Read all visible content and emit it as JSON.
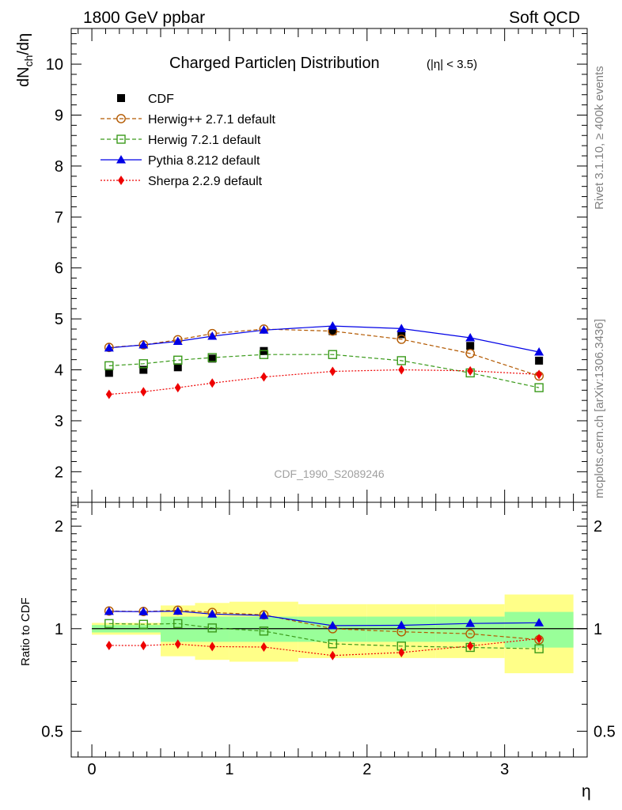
{
  "header": {
    "left": "1800 GeV ppbar",
    "right": "Soft QCD"
  },
  "side_labels": {
    "rivet": "Rivet 3.1.10, ≥ 400k events",
    "mcplots": "mcplots.cern.ch [arXiv:1306.3436]"
  },
  "title": {
    "main": "Charged Particleη Distribution",
    "cut": "(|η| < 3.5)"
  },
  "watermark": "CDF_1990_S2089246",
  "colors": {
    "cdf": "#000000",
    "herwigpp": "#b35900",
    "herwig7": "#3a9a1a",
    "pythia": "#0000e6",
    "sherpa": "#ee0000",
    "band_inner": "#99ff99",
    "band_outer": "#ffff88"
  },
  "chart_data": [
    {
      "type": "line",
      "name": "main",
      "ylabel": "dN_ch/dη",
      "xlabel": "",
      "xlim": [
        -0.15,
        3.6
      ],
      "ylim": [
        1.4,
        10.7
      ],
      "yticks": [
        2,
        3,
        4,
        5,
        6,
        7,
        8,
        9,
        10
      ],
      "yticklabels": [
        "2",
        "3",
        "4",
        "5",
        "6",
        "7",
        "8",
        "9",
        "10"
      ],
      "x": [
        0.125,
        0.375,
        0.625,
        0.875,
        1.25,
        1.75,
        2.25,
        2.75,
        3.25
      ],
      "legend_position": "top-left",
      "series": [
        {
          "name": "CDF",
          "key": "cdf",
          "marker": "square",
          "line": "none",
          "values": [
            3.94,
            4.0,
            4.05,
            4.22,
            4.37,
            4.76,
            4.7,
            4.47,
            4.18
          ]
        },
        {
          "name": "Herwig++ 2.7.1 default",
          "key": "herwigpp",
          "marker": "circle-open",
          "line": "dashed",
          "values": [
            4.44,
            4.49,
            4.59,
            4.71,
            4.8,
            4.76,
            4.6,
            4.32,
            3.88
          ]
        },
        {
          "name": "Herwig 7.2.1 default",
          "key": "herwig7",
          "marker": "square-open",
          "line": "dashed",
          "values": [
            4.08,
            4.12,
            4.19,
            4.24,
            4.3,
            4.3,
            4.18,
            3.94,
            3.65
          ]
        },
        {
          "name": "Pythia 8.212 default",
          "key": "pythia",
          "marker": "triangle",
          "line": "solid",
          "values": [
            4.43,
            4.49,
            4.56,
            4.66,
            4.78,
            4.86,
            4.81,
            4.63,
            4.35
          ]
        },
        {
          "name": "Sherpa 2.2.9 default",
          "key": "sherpa",
          "marker": "diamond",
          "line": "dotted",
          "values": [
            3.52,
            3.57,
            3.65,
            3.74,
            3.86,
            3.97,
            4.0,
            3.98,
            3.91
          ]
        }
      ]
    },
    {
      "type": "line",
      "name": "ratio",
      "ylabel": "Ratio to CDF",
      "xlabel": "η",
      "xlim": [
        -0.15,
        3.6
      ],
      "ylim": [
        0.42,
        2.35
      ],
      "log_y": true,
      "yticks": [
        0.5,
        1,
        2
      ],
      "yticklabels": [
        "0.5",
        "1",
        "2"
      ],
      "xticks": [
        0,
        1,
        2,
        3
      ],
      "xticklabels": [
        "0",
        "1",
        "2",
        "3"
      ],
      "x": [
        0.125,
        0.375,
        0.625,
        0.875,
        1.25,
        1.75,
        2.25,
        2.75,
        3.25
      ],
      "reference": 1,
      "bands": {
        "x_edges": [
          0,
          0.25,
          0.5,
          0.75,
          1.0,
          1.5,
          2.0,
          2.5,
          3.0,
          3.5
        ],
        "inner": [
          [
            0.975,
            1.025
          ],
          [
            0.975,
            1.025
          ],
          [
            0.915,
            1.085
          ],
          [
            0.915,
            1.085
          ],
          [
            0.915,
            1.085
          ],
          [
            0.915,
            1.085
          ],
          [
            0.915,
            1.085
          ],
          [
            0.915,
            1.085
          ],
          [
            0.88,
            1.12
          ]
        ],
        "outer": [
          [
            0.96,
            1.04
          ],
          [
            0.96,
            1.04
          ],
          [
            0.83,
            1.17
          ],
          [
            0.81,
            1.19
          ],
          [
            0.8,
            1.2
          ],
          [
            0.82,
            1.18
          ],
          [
            0.82,
            1.18
          ],
          [
            0.82,
            1.18
          ],
          [
            0.74,
            1.26
          ]
        ]
      },
      "series": [
        {
          "name": "Herwig++ 2.7.1 default",
          "key": "herwigpp",
          "marker": "circle-open",
          "line": "dashed",
          "values": [
            1.127,
            1.123,
            1.133,
            1.116,
            1.098,
            1.0,
            0.979,
            0.966,
            0.928
          ]
        },
        {
          "name": "Herwig 7.2.1 default",
          "key": "herwig7",
          "marker": "square-open",
          "line": "dashed",
          "values": [
            1.035,
            1.03,
            1.035,
            1.005,
            0.984,
            0.903,
            0.889,
            0.881,
            0.873
          ]
        },
        {
          "name": "Pythia 8.212 default",
          "key": "pythia",
          "marker": "triangle",
          "line": "solid",
          "values": [
            1.124,
            1.122,
            1.126,
            1.104,
            1.094,
            1.021,
            1.023,
            1.036,
            1.041
          ]
        },
        {
          "name": "Sherpa 2.2.9 default",
          "key": "sherpa",
          "marker": "diamond",
          "line": "dotted",
          "values": [
            0.893,
            0.892,
            0.901,
            0.886,
            0.883,
            0.834,
            0.851,
            0.89,
            0.935
          ]
        }
      ]
    }
  ]
}
